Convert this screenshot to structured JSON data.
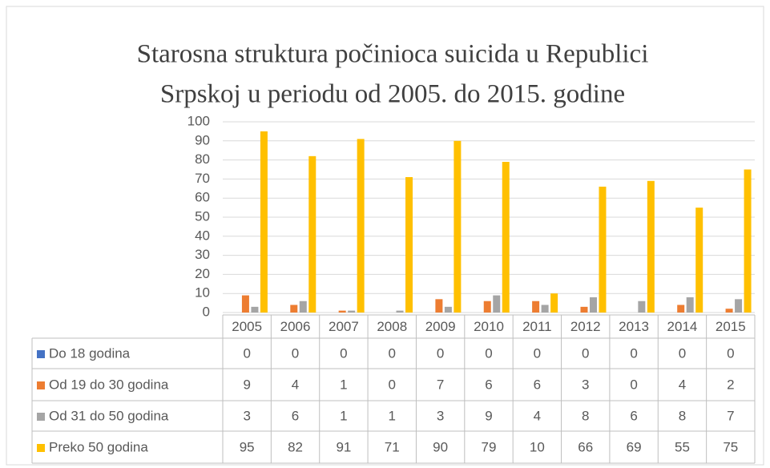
{
  "chart_data": {
    "type": "bar",
    "title": [
      "Starosna struktura počinioca suicida u Republici",
      "Srpskoj u periodu od 2005. do 2015. godine"
    ],
    "categories": [
      "2005",
      "2006",
      "2007",
      "2008",
      "2009",
      "2010",
      "2011",
      "2012",
      "2013",
      "2014",
      "2015"
    ],
    "series": [
      {
        "name": "Do 18 godina",
        "color": "#4472c4",
        "values": [
          0,
          0,
          0,
          0,
          0,
          0,
          0,
          0,
          0,
          0,
          0
        ]
      },
      {
        "name": "Od 19 do 30 godina",
        "color": "#ed7d31",
        "values": [
          9,
          4,
          1,
          0,
          7,
          6,
          6,
          3,
          0,
          4,
          2
        ]
      },
      {
        "name": "Od 31 do 50 godina",
        "color": "#a5a5a5",
        "values": [
          3,
          6,
          1,
          1,
          3,
          9,
          4,
          8,
          6,
          8,
          7
        ]
      },
      {
        "name": "Preko 50 godina",
        "color": "#ffc000",
        "values": [
          95,
          82,
          91,
          71,
          90,
          79,
          10,
          66,
          69,
          55,
          75
        ]
      }
    ],
    "ylim": [
      0,
      100
    ],
    "yticks": [
      0,
      10,
      20,
      30,
      40,
      50,
      60,
      70,
      80,
      90,
      100
    ],
    "grid": true
  }
}
